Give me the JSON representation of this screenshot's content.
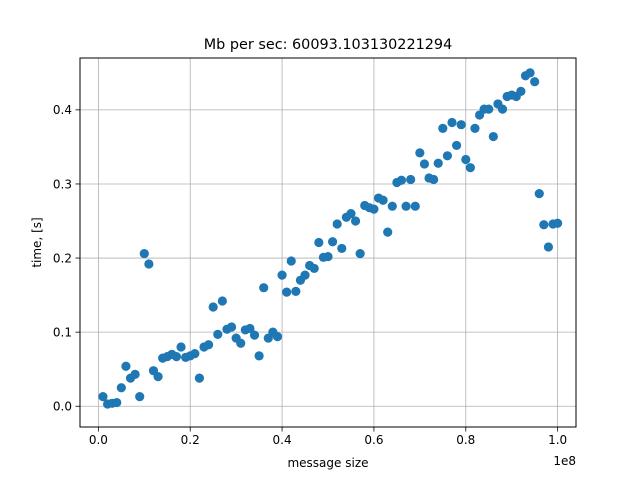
{
  "chart_data": {
    "type": "scatter",
    "title": "Mb per sec: 60093.103130221294",
    "xlabel": "message size",
    "ylabel": "time, [s]",
    "x_offset_label": "1e8",
    "xlim": [
      -0.04,
      1.04
    ],
    "ylim": [
      -0.028,
      0.47
    ],
    "xticks": [
      0.0,
      0.2,
      0.4,
      0.6,
      0.8,
      1.0
    ],
    "xtick_labels": [
      "0.0",
      "0.2",
      "0.4",
      "0.6",
      "0.8",
      "1.0"
    ],
    "yticks": [
      0.0,
      0.1,
      0.2,
      0.3,
      0.4
    ],
    "ytick_labels": [
      "0.0",
      "0.1",
      "0.2",
      "0.3",
      "0.4"
    ],
    "grid": true,
    "marker_color": "#1f77b4",
    "series": [
      {
        "x": [
          0.01,
          0.02,
          0.03,
          0.04,
          0.05,
          0.06,
          0.07,
          0.08,
          0.09,
          0.1,
          0.11,
          0.12,
          0.13,
          0.14,
          0.15,
          0.16,
          0.17,
          0.18,
          0.19,
          0.2,
          0.21,
          0.22,
          0.23,
          0.24,
          0.25,
          0.26,
          0.27,
          0.28,
          0.29,
          0.3,
          0.31,
          0.32,
          0.33,
          0.34,
          0.35,
          0.36,
          0.37,
          0.38,
          0.39,
          0.4,
          0.41,
          0.42,
          0.43,
          0.44,
          0.45,
          0.46,
          0.47,
          0.48,
          0.49,
          0.5,
          0.51,
          0.52,
          0.53,
          0.54,
          0.55,
          0.56,
          0.57,
          0.58,
          0.59,
          0.6,
          0.61,
          0.62,
          0.63,
          0.64,
          0.65,
          0.66,
          0.67,
          0.68,
          0.69,
          0.7,
          0.71,
          0.72,
          0.73,
          0.74,
          0.75,
          0.76,
          0.77,
          0.78,
          0.79,
          0.8,
          0.81,
          0.82,
          0.83,
          0.84,
          0.85,
          0.86,
          0.87,
          0.88,
          0.89,
          0.9,
          0.91,
          0.92,
          0.93,
          0.94,
          0.95,
          0.96,
          0.97,
          0.98,
          0.99,
          1.0
        ],
        "y": [
          0.013,
          0.003,
          0.004,
          0.005,
          0.025,
          0.054,
          0.038,
          0.043,
          0.013,
          0.206,
          0.192,
          0.048,
          0.04,
          0.065,
          0.067,
          0.07,
          0.067,
          0.08,
          0.066,
          0.068,
          0.071,
          0.038,
          0.08,
          0.083,
          0.134,
          0.097,
          0.142,
          0.104,
          0.107,
          0.092,
          0.085,
          0.103,
          0.105,
          0.096,
          0.068,
          0.16,
          0.092,
          0.1,
          0.094,
          0.177,
          0.154,
          0.196,
          0.155,
          0.17,
          0.177,
          0.19,
          0.186,
          0.221,
          0.201,
          0.202,
          0.222,
          0.246,
          0.213,
          0.255,
          0.26,
          0.25,
          0.206,
          0.271,
          0.268,
          0.266,
          0.281,
          0.278,
          0.235,
          0.27,
          0.302,
          0.305,
          0.27,
          0.306,
          0.27,
          0.342,
          0.327,
          0.308,
          0.306,
          0.328,
          0.375,
          0.338,
          0.383,
          0.352,
          0.38,
          0.333,
          0.322,
          0.375,
          0.393,
          0.401,
          0.401,
          0.364,
          0.408,
          0.401,
          0.418,
          0.42,
          0.418,
          0.425,
          0.446,
          0.45,
          0.438,
          0.287,
          0.245,
          0.215,
          0.246,
          0.247
        ]
      }
    ]
  }
}
